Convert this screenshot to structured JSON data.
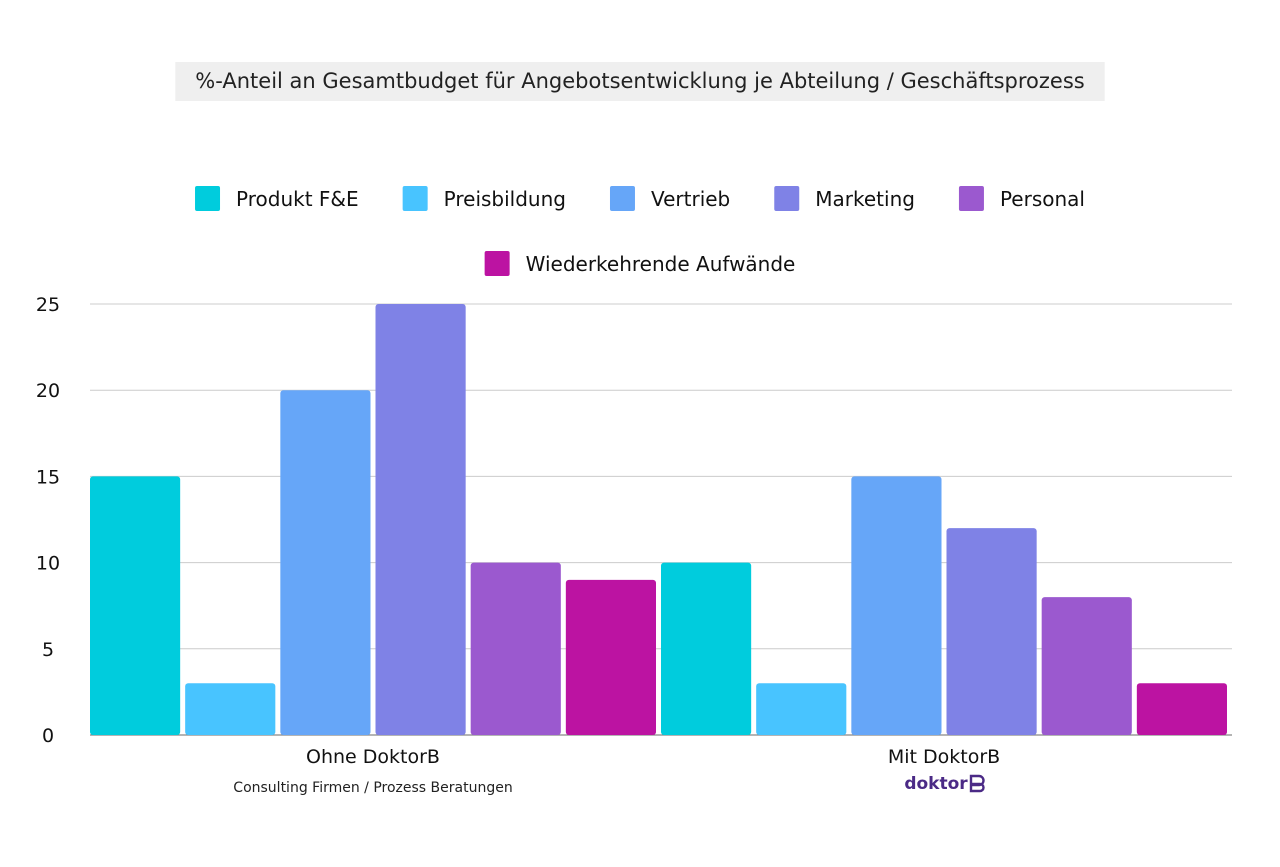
{
  "chart_data": {
    "type": "bar",
    "title": "%-Anteil an Gesamtbudget für Angebotsentwicklung je Abteilung / Geschäftsprozess",
    "categories": [
      "Ohne DoktorB",
      "Mit DoktorB"
    ],
    "category_sublabels": [
      "Consulting Firmen / Prozess Beratungen",
      ""
    ],
    "logo_text": "doktor",
    "series": [
      {
        "name": "Produkt F&E",
        "color": "#00CCDD",
        "values": [
          15,
          10
        ]
      },
      {
        "name": "Preisbildung",
        "color": "#48C4FF",
        "values": [
          3,
          3
        ]
      },
      {
        "name": "Vertrieb",
        "color": "#66A6F8",
        "values": [
          20,
          15
        ]
      },
      {
        "name": "Marketing",
        "color": "#7F82E6",
        "values": [
          25,
          12
        ]
      },
      {
        "name": "Personal",
        "color": "#9B59CF",
        "values": [
          10,
          8
        ]
      },
      {
        "name": "Wiederkehrende Aufwände",
        "color": "#BC13A2",
        "values": [
          9,
          3
        ]
      }
    ],
    "ylim": [
      0,
      25
    ],
    "yticks": [
      0,
      5,
      10,
      15,
      20,
      25
    ],
    "xlabel": "",
    "ylabel": "",
    "grid": true,
    "legend_position": "top",
    "colors": {
      "title_background": "#EFEFEF",
      "grid": "#CCCCCC",
      "axis": "#888888"
    }
  }
}
